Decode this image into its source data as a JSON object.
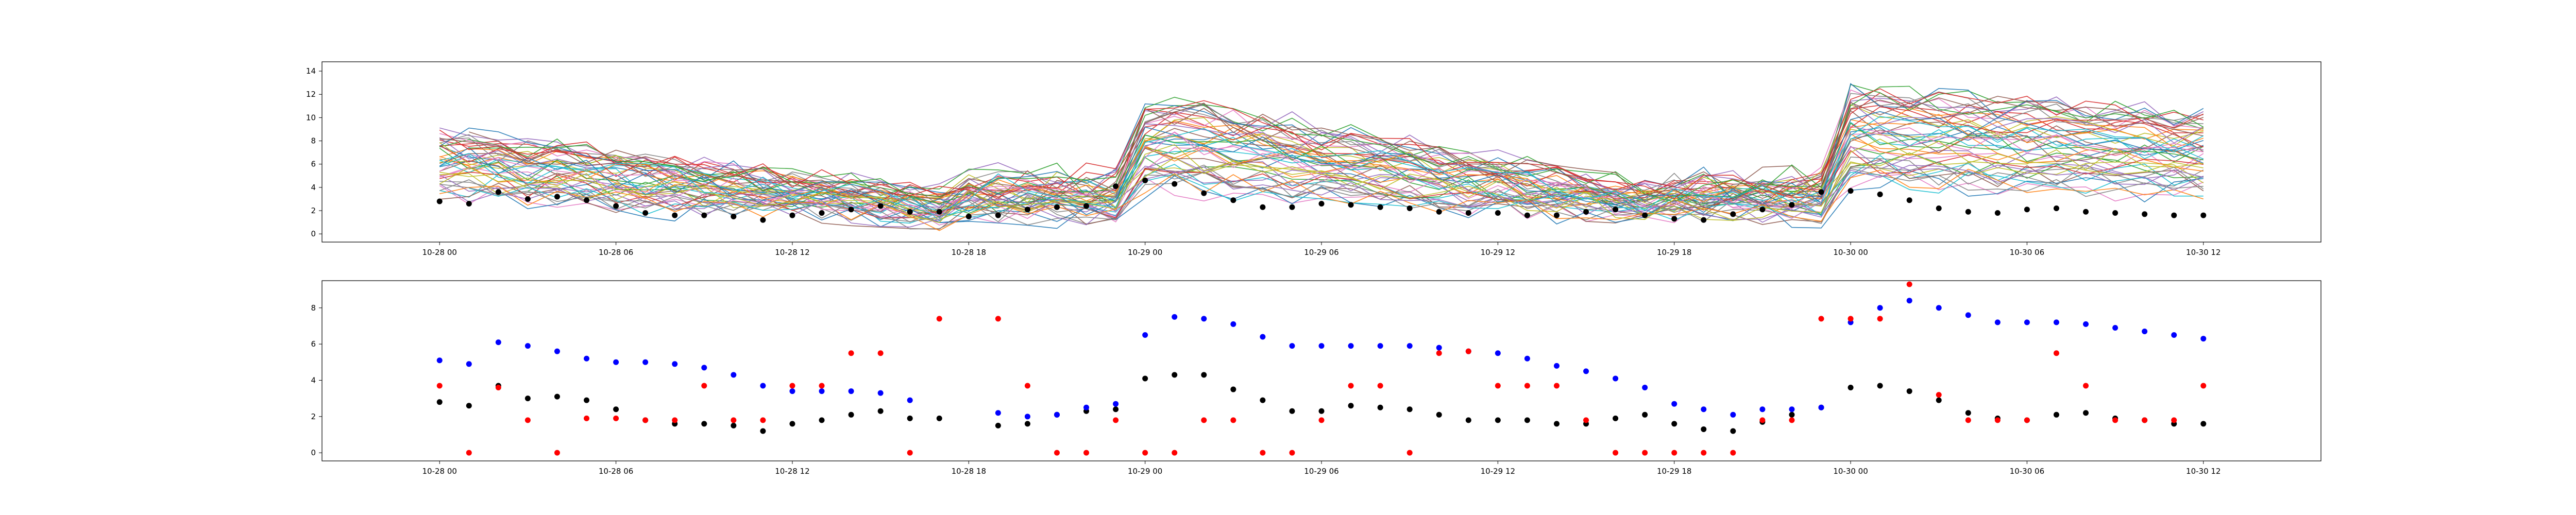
{
  "chart_data": [
    {
      "type": "line",
      "title": "",
      "xlabel": "",
      "ylabel": "",
      "xlim": [
        "2023-10-27T20:00",
        "2023-10-30T16:00"
      ],
      "ylim": [
        -0.7,
        14.8
      ],
      "grid": false,
      "xticks": [
        "10-28 00",
        "10-28 06",
        "10-28 12",
        "10-28 18",
        "10-29 00",
        "10-29 06",
        "10-29 12",
        "10-29 18",
        "10-30 00",
        "10-30 06",
        "10-30 12"
      ],
      "yticks": [
        0,
        2,
        4,
        6,
        8,
        10,
        12,
        14
      ],
      "colors": [
        "#1f77b4",
        "#ff7f0e",
        "#2ca02c",
        "#d62728",
        "#9467bd",
        "#8c564b",
        "#e377c2",
        "#7f7f7f",
        "#bcbd22",
        "#17becf"
      ],
      "line_count": 50,
      "black_points": {
        "x": [
          "2023-10-28T00:00",
          "2023-10-28T01:00",
          "2023-10-28T02:00",
          "2023-10-28T03:00",
          "2023-10-28T04:00",
          "2023-10-28T05:00",
          "2023-10-28T06:00",
          "2023-10-28T07:00",
          "2023-10-28T08:00",
          "2023-10-28T09:00",
          "2023-10-28T10:00",
          "2023-10-28T11:00",
          "2023-10-28T12:00",
          "2023-10-28T13:00",
          "2023-10-28T14:00",
          "2023-10-28T15:00",
          "2023-10-28T16:00",
          "2023-10-28T17:00",
          "2023-10-28T18:00",
          "2023-10-28T19:00",
          "2023-10-28T20:00",
          "2023-10-28T21:00",
          "2023-10-28T22:00",
          "2023-10-28T23:00",
          "2023-10-29T00:00",
          "2023-10-29T01:00",
          "2023-10-29T02:00",
          "2023-10-29T03:00",
          "2023-10-29T04:00",
          "2023-10-29T05:00",
          "2023-10-29T06:00",
          "2023-10-29T07:00",
          "2023-10-29T08:00",
          "2023-10-29T09:00",
          "2023-10-29T10:00",
          "2023-10-29T11:00",
          "2023-10-29T12:00",
          "2023-10-29T13:00",
          "2023-10-29T14:00",
          "2023-10-29T15:00",
          "2023-10-29T16:00",
          "2023-10-29T17:00",
          "2023-10-29T18:00",
          "2023-10-29T19:00",
          "2023-10-29T20:00",
          "2023-10-29T21:00",
          "2023-10-29T22:00",
          "2023-10-29T23:00",
          "2023-10-30T00:00",
          "2023-10-30T01:00",
          "2023-10-30T02:00",
          "2023-10-30T03:00",
          "2023-10-30T04:00",
          "2023-10-30T05:00",
          "2023-10-30T06:00",
          "2023-10-30T07:00",
          "2023-10-30T08:00",
          "2023-10-30T09:00",
          "2023-10-30T10:00",
          "2023-10-30T11:00",
          "2023-10-30T12:00"
        ],
        "y": [
          2.8,
          2.6,
          3.6,
          3.0,
          3.2,
          2.9,
          2.4,
          1.8,
          1.6,
          1.6,
          1.5,
          1.2,
          1.6,
          1.8,
          2.1,
          2.4,
          1.9,
          1.9,
          1.5,
          1.6,
          2.1,
          2.3,
          2.4,
          4.1,
          4.6,
          4.3,
          3.5,
          2.9,
          2.3,
          2.3,
          2.6,
          2.5,
          2.3,
          2.2,
          1.9,
          1.8,
          1.8,
          1.6,
          1.6,
          1.9,
          2.1,
          1.6,
          1.3,
          1.2,
          1.7,
          2.1,
          2.5,
          3.6,
          3.7,
          3.4,
          2.9,
          2.2,
          1.9,
          1.8,
          2.1,
          2.2,
          1.9,
          1.8,
          1.7,
          1.6,
          1.6
        ]
      }
    },
    {
      "type": "scatter",
      "title": "",
      "xlabel": "",
      "ylabel": "",
      "xlim": [
        "2023-10-27T20:00",
        "2023-10-30T16:00"
      ],
      "ylim": [
        -0.45,
        9.5
      ],
      "grid": false,
      "xticks": [
        "10-28 00",
        "10-28 06",
        "10-28 12",
        "10-28 18",
        "10-29 00",
        "10-29 06",
        "10-29 12",
        "10-29 18",
        "10-30 00",
        "10-30 06",
        "10-30 12"
      ],
      "yticks": [
        0,
        2,
        4,
        6,
        8
      ],
      "series": [
        {
          "color": "#000000",
          "x": [
            "2023-10-28T00:00",
            "2023-10-28T01:00",
            "2023-10-28T02:00",
            "2023-10-28T03:00",
            "2023-10-28T04:00",
            "2023-10-28T05:00",
            "2023-10-28T06:00",
            "2023-10-28T07:00",
            "2023-10-28T08:00",
            "2023-10-28T09:00",
            "2023-10-28T10:00",
            "2023-10-28T11:00",
            "2023-10-28T12:00",
            "2023-10-28T13:00",
            "2023-10-28T14:00",
            "2023-10-28T15:00",
            "2023-10-28T16:00",
            "2023-10-28T17:00",
            "2023-10-28T19:00",
            "2023-10-28T20:00",
            "2023-10-28T21:00",
            "2023-10-28T22:00",
            "2023-10-28T23:00",
            "2023-10-29T00:00",
            "2023-10-29T01:00",
            "2023-10-29T02:00",
            "2023-10-29T03:00",
            "2023-10-29T04:00",
            "2023-10-29T05:00",
            "2023-10-29T06:00",
            "2023-10-29T07:00",
            "2023-10-29T08:00",
            "2023-10-29T09:00",
            "2023-10-29T10:00",
            "2023-10-29T11:00",
            "2023-10-29T12:00",
            "2023-10-29T13:00",
            "2023-10-29T14:00",
            "2023-10-29T15:00",
            "2023-10-29T16:00",
            "2023-10-29T17:00",
            "2023-10-29T18:00",
            "2023-10-29T19:00",
            "2023-10-29T20:00",
            "2023-10-29T21:00",
            "2023-10-29T22:00",
            "2023-10-29T23:00",
            "2023-10-30T00:00",
            "2023-10-30T01:00",
            "2023-10-30T02:00",
            "2023-10-30T03:00",
            "2023-10-30T04:00",
            "2023-10-30T05:00",
            "2023-10-30T06:00",
            "2023-10-30T07:00",
            "2023-10-30T08:00",
            "2023-10-30T09:00",
            "2023-10-30T10:00",
            "2023-10-30T11:00",
            "2023-10-30T12:00"
          ],
          "y": [
            2.8,
            2.6,
            3.7,
            3.0,
            3.1,
            2.9,
            2.4,
            1.8,
            1.6,
            1.6,
            1.5,
            1.2,
            1.6,
            1.8,
            2.1,
            2.3,
            1.9,
            1.9,
            1.5,
            1.6,
            2.1,
            2.3,
            2.4,
            4.1,
            4.3,
            4.3,
            3.5,
            2.9,
            2.3,
            2.3,
            2.6,
            2.5,
            2.4,
            2.1,
            1.8,
            1.8,
            1.8,
            1.6,
            1.6,
            1.9,
            2.1,
            1.6,
            1.3,
            1.2,
            1.7,
            2.1,
            2.5,
            3.6,
            3.7,
            3.4,
            2.9,
            2.2,
            1.9,
            1.8,
            2.1,
            2.2,
            1.9,
            1.8,
            1.6,
            1.6
          ]
        },
        {
          "color": "#0000ff",
          "x": [
            "2023-10-28T00:00",
            "2023-10-28T01:00",
            "2023-10-28T02:00",
            "2023-10-28T03:00",
            "2023-10-28T04:00",
            "2023-10-28T05:00",
            "2023-10-28T06:00",
            "2023-10-28T07:00",
            "2023-10-28T08:00",
            "2023-10-28T09:00",
            "2023-10-28T10:00",
            "2023-10-28T11:00",
            "2023-10-28T12:00",
            "2023-10-28T13:00",
            "2023-10-28T14:00",
            "2023-10-28T15:00",
            "2023-10-28T16:00",
            "2023-10-28T17:00",
            "2023-10-28T19:00",
            "2023-10-28T20:00",
            "2023-10-28T21:00",
            "2023-10-28T22:00",
            "2023-10-28T23:00",
            "2023-10-29T00:00",
            "2023-10-29T01:00",
            "2023-10-29T02:00",
            "2023-10-29T03:00",
            "2023-10-29T04:00",
            "2023-10-29T05:00",
            "2023-10-29T06:00",
            "2023-10-29T07:00",
            "2023-10-29T08:00",
            "2023-10-29T09:00",
            "2023-10-29T10:00",
            "2023-10-29T11:00",
            "2023-10-29T12:00",
            "2023-10-29T13:00",
            "2023-10-29T14:00",
            "2023-10-29T15:00",
            "2023-10-29T16:00",
            "2023-10-29T17:00",
            "2023-10-29T18:00",
            "2023-10-29T19:00",
            "2023-10-29T20:00",
            "2023-10-29T21:00",
            "2023-10-29T22:00",
            "2023-10-29T23:00",
            "2023-10-30T00:00",
            "2023-10-30T01:00",
            "2023-10-30T02:00",
            "2023-10-30T03:00",
            "2023-10-30T04:00",
            "2023-10-30T05:00",
            "2023-10-30T06:00",
            "2023-10-30T07:00",
            "2023-10-30T08:00",
            "2023-10-30T09:00",
            "2023-10-30T10:00",
            "2023-10-30T11:00",
            "2023-10-30T12:00"
          ],
          "y": [
            5.1,
            4.9,
            6.1,
            5.9,
            5.6,
            5.2,
            5.0,
            5.0,
            4.9,
            4.7,
            4.3,
            3.7,
            3.4,
            3.4,
            3.4,
            3.3,
            2.9,
            null,
            2.2,
            2.0,
            2.1,
            2.5,
            2.7,
            6.5,
            7.5,
            7.4,
            7.1,
            6.4,
            5.9,
            5.9,
            5.9,
            5.9,
            5.9,
            5.8,
            5.6,
            5.5,
            5.2,
            4.8,
            4.5,
            4.1,
            3.6,
            2.7,
            2.4,
            2.1,
            2.4,
            2.4,
            2.5,
            7.2,
            8.0,
            8.4,
            8.0,
            7.6,
            7.2,
            7.2,
            7.2,
            7.1,
            6.9,
            6.7,
            6.5,
            6.3
          ]
        },
        {
          "color": "#ff0000",
          "x": [
            "2023-10-28T00:00",
            "2023-10-28T01:00",
            "2023-10-28T02:00",
            "2023-10-28T03:00",
            "2023-10-28T04:00",
            "2023-10-28T05:00",
            "2023-10-28T06:00",
            "2023-10-28T07:00",
            "2023-10-28T08:00",
            "2023-10-28T09:00",
            "2023-10-28T10:00",
            "2023-10-28T11:00",
            "2023-10-28T12:00",
            "2023-10-28T13:00",
            "2023-10-28T14:00",
            "2023-10-28T15:00",
            "2023-10-28T16:00",
            "2023-10-28T17:00",
            "2023-10-28T19:00",
            "2023-10-28T20:00",
            "2023-10-28T21:00",
            "2023-10-28T22:00",
            "2023-10-28T23:00",
            "2023-10-29T00:00",
            "2023-10-29T01:00",
            "2023-10-29T02:00",
            "2023-10-29T03:00",
            "2023-10-29T04:00",
            "2023-10-29T05:00",
            "2023-10-29T06:00",
            "2023-10-29T07:00",
            "2023-10-29T08:00",
            "2023-10-29T09:00",
            "2023-10-29T10:00",
            "2023-10-29T11:00",
            "2023-10-29T12:00",
            "2023-10-29T13:00",
            "2023-10-29T14:00",
            "2023-10-29T15:00",
            "2023-10-29T16:00",
            "2023-10-29T17:00",
            "2023-10-29T18:00",
            "2023-10-29T19:00",
            "2023-10-29T20:00",
            "2023-10-29T21:00",
            "2023-10-29T22:00",
            "2023-10-29T23:00",
            "2023-10-30T00:00",
            "2023-10-30T01:00",
            "2023-10-30T02:00",
            "2023-10-30T03:00",
            "2023-10-30T04:00",
            "2023-10-30T05:00",
            "2023-10-30T06:00",
            "2023-10-30T07:00",
            "2023-10-30T08:00",
            "2023-10-30T09:00",
            "2023-10-30T10:00",
            "2023-10-30T11:00",
            "2023-10-30T12:00"
          ],
          "y": [
            3.7,
            0.0,
            3.6,
            1.8,
            0.0,
            1.9,
            1.9,
            1.8,
            1.8,
            3.7,
            1.8,
            1.8,
            3.7,
            3.7,
            5.5,
            5.5,
            0.0,
            7.4,
            7.4,
            3.7,
            0.0,
            0.0,
            1.8,
            0.0,
            0.0,
            1.8,
            1.8,
            0.0,
            0.0,
            1.8,
            3.7,
            3.7,
            0.0,
            5.5,
            5.6,
            3.7,
            3.7,
            3.7,
            1.8,
            0.0,
            0.0,
            0.0,
            0.0,
            0.0,
            1.8,
            1.8,
            7.4,
            7.4,
            7.4,
            9.3,
            3.2,
            1.8,
            1.8,
            1.8,
            5.5,
            3.7,
            1.8,
            1.8,
            1.8,
            3.7
          ]
        }
      ]
    }
  ]
}
